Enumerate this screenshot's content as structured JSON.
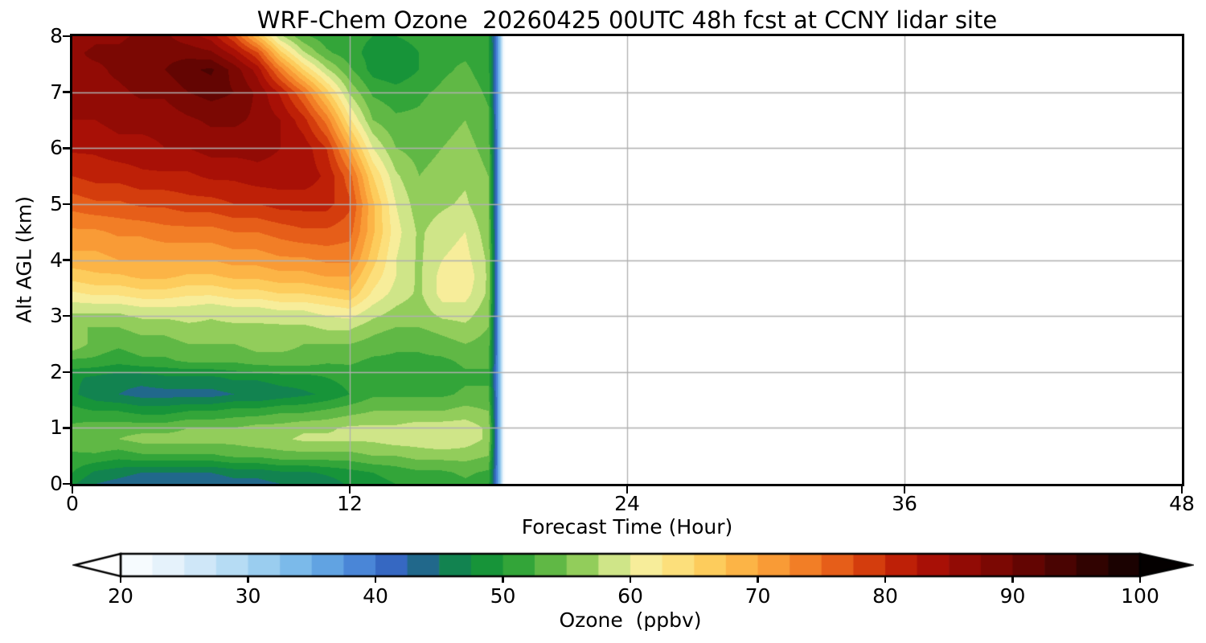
{
  "title": "WRF-Chem Ozone  20260425 00UTC 48h fcst at CCNY lidar site",
  "chart_data": {
    "type": "heatmap",
    "title": "WRF-Chem Ozone  20260425 00UTC 48h fcst at CCNY lidar site",
    "xlabel": "Forecast Time (Hour)",
    "ylabel": "Alt AGL (km)",
    "colorbar_label": "Ozone  (ppbv)",
    "xlim": [
      0,
      48
    ],
    "ylim": [
      0,
      8
    ],
    "x_ticks": [
      0,
      12,
      24,
      36,
      48
    ],
    "y_ticks": [
      0,
      1,
      2,
      3,
      4,
      5,
      6,
      7,
      8
    ],
    "grid": true,
    "grid_color": "#b0b0b0",
    "grid_x": [
      12,
      24,
      36
    ],
    "grid_y": [
      1,
      2,
      3,
      4,
      5,
      6,
      7
    ],
    "colorbar_ticks": [
      20,
      30,
      40,
      50,
      60,
      70,
      80,
      90,
      100
    ],
    "colorbar_range": [
      20,
      100
    ],
    "contour_interval_ppbv": 2.5,
    "data_time_extent_hours": [
      0,
      18.7
    ],
    "colormap": [
      {
        "v": 20.0,
        "c": "#ffffff"
      },
      {
        "v": 25.0,
        "c": "#dcedfa"
      },
      {
        "v": 30.0,
        "c": "#a9d6f2"
      },
      {
        "v": 35.0,
        "c": "#6cb1e7"
      },
      {
        "v": 40.0,
        "c": "#3e78d1"
      },
      {
        "v": 42.5,
        "c": "#2d57b3"
      },
      {
        "v": 45.0,
        "c": "#147962"
      },
      {
        "v": 47.5,
        "c": "#0f8c3e"
      },
      {
        "v": 50.0,
        "c": "#1f9c34"
      },
      {
        "v": 52.5,
        "c": "#47ae3d"
      },
      {
        "v": 55.0,
        "c": "#78c24d"
      },
      {
        "v": 57.5,
        "c": "#abd768"
      },
      {
        "v": 60.0,
        "c": "#f2f2a8"
      },
      {
        "v": 62.5,
        "c": "#fbe78c"
      },
      {
        "v": 65.0,
        "c": "#fcd76a"
      },
      {
        "v": 67.5,
        "c": "#fdc04e"
      },
      {
        "v": 70.0,
        "c": "#fba83e"
      },
      {
        "v": 72.5,
        "c": "#f68d2d"
      },
      {
        "v": 75.0,
        "c": "#ed6e1f"
      },
      {
        "v": 77.5,
        "c": "#de4e12"
      },
      {
        "v": 80.0,
        "c": "#c92b08"
      },
      {
        "v": 82.5,
        "c": "#b21406"
      },
      {
        "v": 85.0,
        "c": "#9d0c05"
      },
      {
        "v": 87.5,
        "c": "#870a04"
      },
      {
        "v": 90.0,
        "c": "#6f0602"
      },
      {
        "v": 92.5,
        "c": "#560402"
      },
      {
        "v": 95.0,
        "c": "#3d0301"
      },
      {
        "v": 97.5,
        "c": "#250201"
      },
      {
        "v": 100.0,
        "c": "#110100"
      },
      {
        "v": 105.0,
        "c": "#000000"
      }
    ],
    "times": [
      0,
      1,
      2,
      3,
      4,
      5,
      6,
      7,
      8,
      9,
      10,
      11,
      12,
      13,
      14,
      15,
      16,
      17,
      18,
      18.4,
      18.7
    ],
    "altitudes_km": [
      0.0,
      0.2,
      0.5,
      0.8,
      1.0,
      1.3,
      1.6,
      1.9,
      2.2,
      2.5,
      2.8,
      3.1,
      3.4,
      3.7,
      4.0,
      4.5,
      5.0,
      5.5,
      6.0,
      6.5,
      7.0,
      7.4,
      7.7,
      8.0
    ],
    "ozone_ppbv": [
      [
        48,
        45,
        44,
        43,
        43,
        43,
        43,
        44,
        44,
        45,
        45,
        46,
        48,
        49,
        50,
        51,
        51,
        52,
        51,
        38,
        20
      ],
      [
        50,
        47,
        46,
        45,
        45,
        45,
        45,
        46,
        46,
        47,
        47,
        48,
        49,
        50,
        51,
        52,
        52,
        53,
        52,
        38,
        20
      ],
      [
        52,
        52,
        51,
        52,
        52,
        52,
        52,
        53,
        53,
        54,
        54,
        54,
        54,
        55,
        55,
        56,
        56,
        56,
        55,
        38,
        20
      ],
      [
        54,
        55,
        55,
        56,
        56,
        56,
        56,
        56,
        57,
        57,
        58,
        58,
        58,
        58,
        59,
        59,
        60,
        59,
        57,
        38,
        20
      ],
      [
        53,
        54,
        54,
        54,
        54,
        55,
        55,
        55,
        56,
        56,
        57,
        57,
        58,
        58,
        58,
        59,
        59,
        59,
        57,
        38,
        20
      ],
      [
        51,
        50,
        50,
        49,
        49,
        50,
        50,
        51,
        51,
        52,
        52,
        53,
        54,
        55,
        55,
        55,
        55,
        56,
        55,
        38,
        20
      ],
      [
        48,
        46,
        45,
        44,
        44,
        44,
        44,
        45,
        45,
        46,
        47,
        48,
        50,
        52,
        52,
        52,
        52,
        53,
        53,
        38,
        20
      ],
      [
        48,
        47,
        46,
        46,
        47,
        47,
        47,
        48,
        48,
        49,
        49,
        50,
        51,
        51,
        51,
        51,
        51,
        52,
        52,
        38,
        20
      ],
      [
        52,
        52,
        51,
        52,
        52,
        53,
        53,
        53,
        54,
        54,
        54,
        53,
        53,
        52,
        52,
        52,
        52,
        53,
        53,
        38,
        20
      ],
      [
        57,
        54,
        53,
        54,
        54,
        55,
        55,
        55,
        56,
        56,
        55,
        55,
        55,
        54,
        53,
        53,
        54,
        55,
        54,
        38,
        20
      ],
      [
        55,
        55,
        55,
        56,
        56,
        57,
        57,
        57,
        57,
        57,
        57,
        58,
        58,
        56,
        55,
        55,
        56,
        57,
        55,
        38,
        20
      ],
      [
        58,
        58,
        58,
        59,
        59,
        59,
        58,
        59,
        59,
        60,
        60,
        61,
        62,
        59,
        57,
        56,
        59,
        59,
        56,
        38,
        20
      ],
      [
        62,
        63,
        63,
        64,
        64,
        63,
        63,
        64,
        64,
        65,
        65,
        66,
        67,
        62,
        59,
        57,
        61,
        61,
        57,
        38,
        20
      ],
      [
        66,
        67,
        67,
        68,
        68,
        67,
        67,
        68,
        68,
        69,
        69,
        70,
        70,
        64,
        60,
        57,
        61,
        62,
        57,
        38,
        20
      ],
      [
        69,
        69,
        70,
        70,
        70,
        70,
        70,
        71,
        71,
        72,
        72,
        73,
        73,
        66,
        60,
        57,
        60,
        61,
        57,
        38,
        20
      ],
      [
        72,
        72,
        73,
        73,
        74,
        74,
        74,
        75,
        75,
        76,
        77,
        77,
        76,
        68,
        61,
        57,
        59,
        60,
        56,
        38,
        20
      ],
      [
        76,
        77,
        77,
        78,
        78,
        79,
        79,
        80,
        80,
        81,
        81,
        81,
        78,
        68,
        60,
        56,
        57,
        58,
        55,
        38,
        20
      ],
      [
        80,
        81,
        81,
        82,
        82,
        82,
        83,
        83,
        84,
        84,
        84,
        82,
        76,
        65,
        58,
        55,
        56,
        57,
        55,
        38,
        20
      ],
      [
        83,
        83,
        84,
        84,
        85,
        85,
        86,
        86,
        86,
        85,
        84,
        80,
        70,
        60,
        55,
        54,
        55,
        56,
        54,
        38,
        20
      ],
      [
        85,
        85,
        86,
        86,
        86,
        87,
        88,
        88,
        87,
        85,
        81,
        74,
        63,
        55,
        53,
        53,
        54,
        55,
        53,
        38,
        20
      ],
      [
        86,
        87,
        87,
        88,
        88,
        90,
        91,
        90,
        87,
        82,
        75,
        66,
        57,
        52,
        51,
        52,
        53,
        54,
        52,
        38,
        20
      ],
      [
        87,
        87,
        88,
        89,
        90,
        92,
        93,
        89,
        84,
        74,
        65,
        58,
        53,
        49,
        48,
        50,
        52,
        53,
        51,
        38,
        20
      ],
      [
        87,
        88,
        88,
        89,
        89,
        89,
        88,
        84,
        78,
        66,
        58,
        53,
        51,
        49,
        48,
        50,
        52,
        52,
        51,
        38,
        20
      ],
      [
        86,
        87,
        87,
        88,
        88,
        86,
        84,
        78,
        68,
        58,
        53,
        51,
        51,
        50,
        50,
        51,
        52,
        51,
        50,
        38,
        20
      ]
    ]
  }
}
